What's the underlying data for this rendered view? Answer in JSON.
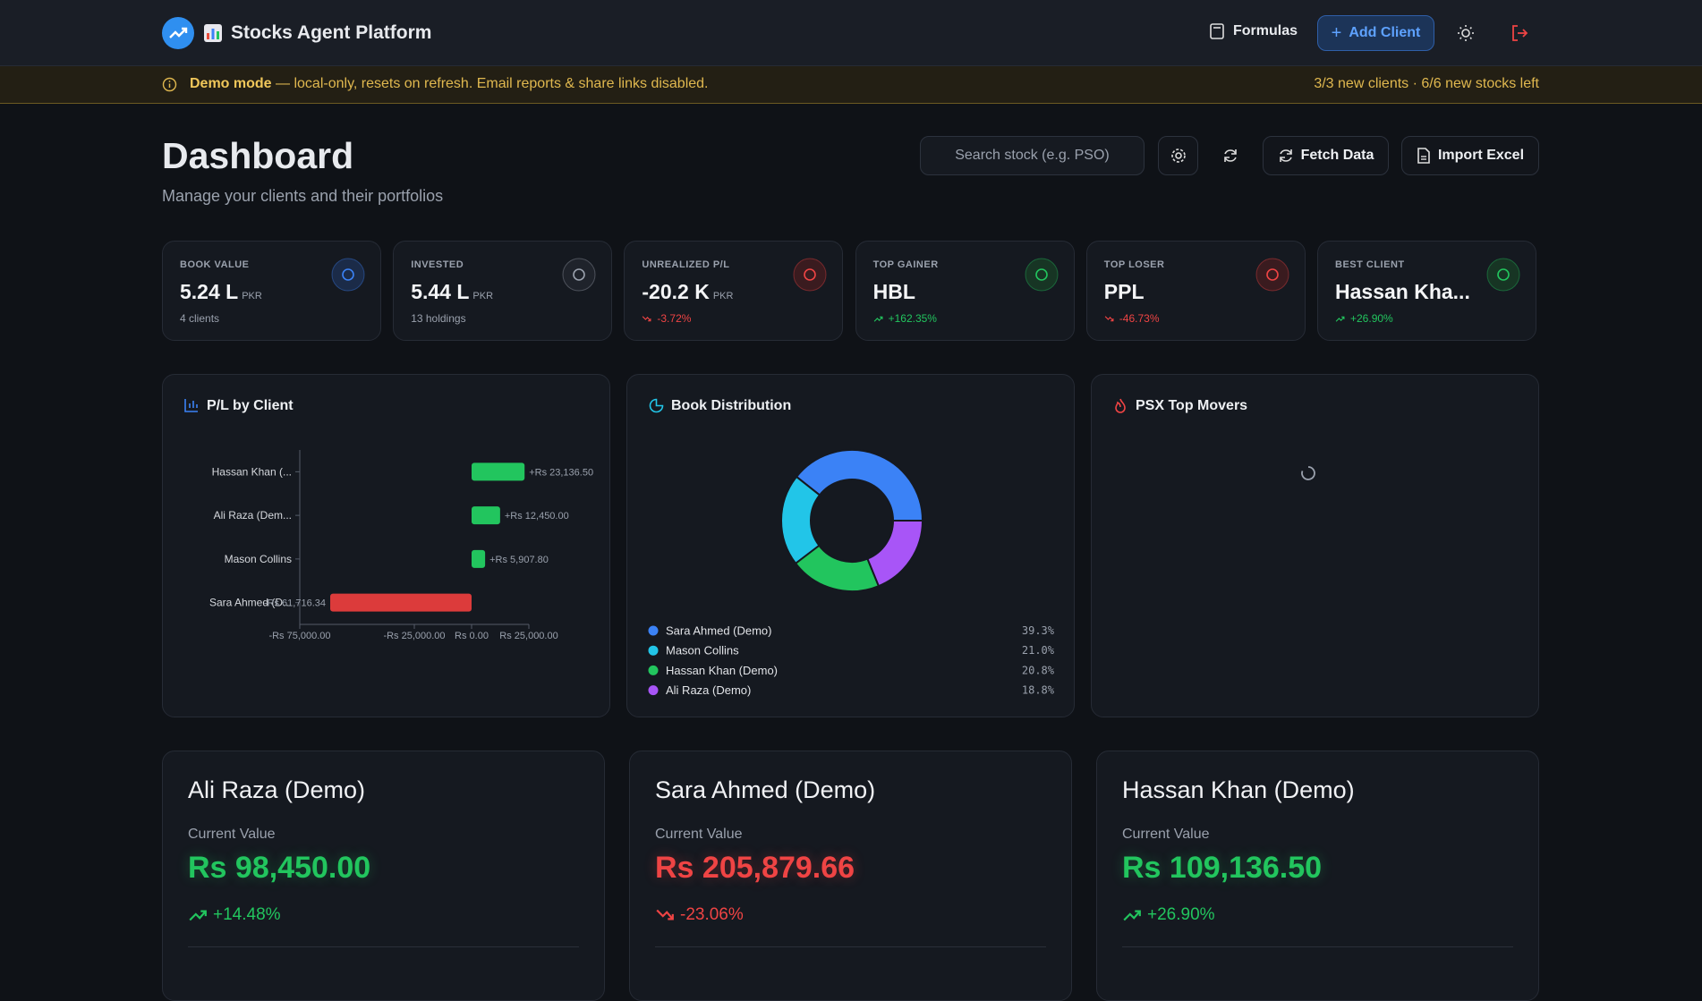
{
  "header": {
    "title": "Stocks Agent Platform",
    "formulas": "Formulas",
    "add_client": "Add Client"
  },
  "banner": {
    "label": "Demo mode",
    "message": "— local-only, resets on refresh. Email reports & share links disabled.",
    "quota": "3/3 new clients · 6/6 new stocks left"
  },
  "dashboard": {
    "title": "Dashboard",
    "subtitle": "Manage your clients and their portfolios",
    "search_placeholder": "Search stock (e.g. PSO)",
    "fetch": "Fetch Data",
    "import": "Import Excel"
  },
  "stats": [
    {
      "label": "BOOK VALUE",
      "value": "5.24 L",
      "unit": "PKR",
      "sub": "4 clients"
    },
    {
      "label": "INVESTED",
      "value": "5.44 L",
      "unit": "PKR",
      "sub": "13 holdings"
    },
    {
      "label": "UNREALIZED P/L",
      "value": "-20.2 K",
      "unit": "PKR",
      "sub": "-3.72%",
      "trend": "down"
    },
    {
      "label": "TOP GAINER",
      "value": "HBL",
      "sub": "+162.35%",
      "trend": "up"
    },
    {
      "label": "TOP LOSER",
      "value": "PPL",
      "sub": "-46.73%",
      "trend": "down"
    },
    {
      "label": "BEST CLIENT",
      "value": "Hassan Kha...",
      "sub": "+26.90%",
      "trend": "up"
    }
  ],
  "pl_chart": {
    "type": "bar",
    "orientation": "horizontal",
    "title": "P/L by Client",
    "categories": [
      "Hassan Khan (...",
      "Ali Raza (Dem...",
      "Mason Collins",
      "Sara Ahmed (D..."
    ],
    "values": [
      23136.5,
      12450,
      5907.8,
      -61716.34
    ],
    "value_labels": [
      "+Rs 23,136.50",
      "+Rs 12,450.00",
      "+Rs 5,907.80",
      "-Rs 61,716.34"
    ],
    "xlim": [
      -75000,
      25000
    ],
    "xticks": [
      {
        "value": -75000,
        "label": "-Rs 75,000.00"
      },
      {
        "value": -25000,
        "label": "-Rs 25,000.00"
      },
      {
        "value": 0,
        "label": "Rs 0.00"
      },
      {
        "value": 25000,
        "label": "Rs 25,000.00"
      }
    ],
    "positive_color": "#22c55e",
    "negative_color": "#dc3b3b"
  },
  "book_chart": {
    "type": "pie",
    "donut": true,
    "title": "Book Distribution",
    "categories": [
      "Sara Ahmed (Demo)",
      "Mason Collins",
      "Hassan Khan (Demo)",
      "Ali Raza (Demo)"
    ],
    "values": [
      39.3,
      21.0,
      20.8,
      18.8
    ],
    "value_labels": [
      "39.3%",
      "21.0%",
      "20.8%",
      "18.8%"
    ],
    "colors": [
      "#3b82f6",
      "#22c5e8",
      "#22c55e",
      "#a855f7"
    ]
  },
  "movers": {
    "title": "PSX Top Movers"
  },
  "clients": [
    {
      "name": "Ali Raza (Demo)",
      "label": "Current Value",
      "value": "Rs 98,450.00",
      "change": "+14.48%",
      "trend": "up"
    },
    {
      "name": "Sara Ahmed (Demo)",
      "label": "Current Value",
      "value": "Rs 205,879.66",
      "change": "-23.06%",
      "trend": "down"
    },
    {
      "name": "Hassan Khan (Demo)",
      "label": "Current Value",
      "value": "Rs 109,136.50",
      "change": "+26.90%",
      "trend": "up"
    }
  ]
}
